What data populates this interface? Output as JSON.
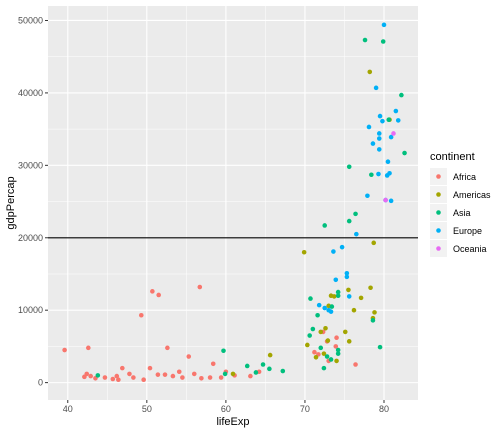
{
  "chart_data": {
    "type": "scatter",
    "xlabel": "lifeExp",
    "ylabel": "gdpPercap",
    "xlim": [
      37.5,
      84.3
    ],
    "ylim": [
      -2400,
      52000
    ],
    "x_ticks": [
      40,
      50,
      60,
      70,
      80
    ],
    "y_ticks": [
      0,
      10000,
      20000,
      30000,
      40000,
      50000
    ],
    "hline": 20000,
    "legend": {
      "title": "continent",
      "position": "right",
      "entries": [
        "Africa",
        "Americas",
        "Asia",
        "Europe",
        "Oceania"
      ]
    },
    "colors": {
      "Africa": "#F8766D",
      "Americas": "#A3A500",
      "Asia": "#00BF7D",
      "Europe": "#00B0F6",
      "Oceania": "#E76BF3"
    },
    "panel_background": "#EBEBEB",
    "grid": true,
    "series": [
      {
        "name": "Africa",
        "points": [
          [
            39.6,
            4500
          ],
          [
            42.1,
            800
          ],
          [
            42.4,
            1200
          ],
          [
            42.6,
            4800
          ],
          [
            42.9,
            900
          ],
          [
            43.5,
            600
          ],
          [
            44.7,
            700
          ],
          [
            45.7,
            500
          ],
          [
            46.2,
            900
          ],
          [
            46.4,
            400
          ],
          [
            46.9,
            2000
          ],
          [
            47.8,
            1200
          ],
          [
            48.3,
            700
          ],
          [
            49.3,
            9300
          ],
          [
            49.6,
            400
          ],
          [
            50.4,
            2000
          ],
          [
            50.7,
            12600
          ],
          [
            51.4,
            1100
          ],
          [
            51.5,
            12100
          ],
          [
            52.3,
            1100
          ],
          [
            52.6,
            4800
          ],
          [
            53.3,
            900
          ],
          [
            54.1,
            1500
          ],
          [
            54.5,
            700
          ],
          [
            55.3,
            3600
          ],
          [
            56.0,
            1200
          ],
          [
            56.7,
            13200
          ],
          [
            56.9,
            600
          ],
          [
            58.0,
            700
          ],
          [
            58.4,
            2600
          ],
          [
            59.4,
            700
          ],
          [
            60.0,
            1500
          ],
          [
            61.1,
            1000
          ],
          [
            63.1,
            900
          ],
          [
            64.2,
            1500
          ],
          [
            71.2,
            4200
          ],
          [
            71.7,
            3900
          ],
          [
            72.3,
            7000
          ],
          [
            72.8,
            5700
          ],
          [
            73.0,
            3000
          ],
          [
            73.9,
            5000
          ],
          [
            74.0,
            6200
          ],
          [
            76.4,
            2500
          ]
        ]
      },
      {
        "name": "Americas",
        "points": [
          [
            60.9,
            1200
          ],
          [
            65.6,
            3800
          ],
          [
            69.9,
            18000
          ],
          [
            70.3,
            5200
          ],
          [
            71.4,
            3500
          ],
          [
            72.0,
            7000
          ],
          [
            72.4,
            4000
          ],
          [
            72.6,
            7500
          ],
          [
            72.9,
            5800
          ],
          [
            73.0,
            10600
          ],
          [
            73.3,
            12000
          ],
          [
            73.7,
            11900
          ],
          [
            74.0,
            3000
          ],
          [
            75.1,
            7000
          ],
          [
            75.5,
            12800
          ],
          [
            75.6,
            5700
          ],
          [
            76.2,
            10000
          ],
          [
            77.1,
            11700
          ],
          [
            78.2,
            42900
          ],
          [
            78.6,
            8900
          ],
          [
            78.3,
            13100
          ],
          [
            78.7,
            19300
          ],
          [
            78.8,
            9700
          ],
          [
            80.7,
            36300
          ]
        ]
      },
      {
        "name": "Asia",
        "points": [
          [
            43.8,
            1000
          ],
          [
            59.7,
            4400
          ],
          [
            59.9,
            1200
          ],
          [
            62.7,
            2300
          ],
          [
            63.8,
            1400
          ],
          [
            64.7,
            2500
          ],
          [
            65.5,
            1900
          ],
          [
            67.2,
            1600
          ],
          [
            70.6,
            6500
          ],
          [
            70.7,
            11600
          ],
          [
            71.0,
            7400
          ],
          [
            71.6,
            9300
          ],
          [
            72.0,
            4800
          ],
          [
            72.4,
            2000
          ],
          [
            72.5,
            21700
          ],
          [
            72.8,
            3600
          ],
          [
            73.3,
            3200
          ],
          [
            73.4,
            10500
          ],
          [
            74.2,
            12000
          ],
          [
            74.2,
            12500
          ],
          [
            74.2,
            4500
          ],
          [
            74.2,
            4000
          ],
          [
            75.6,
            29800
          ],
          [
            75.6,
            22300
          ],
          [
            76.4,
            23300
          ],
          [
            77.6,
            47300
          ],
          [
            78.4,
            28700
          ],
          [
            78.6,
            8600
          ],
          [
            79.9,
            47100
          ],
          [
            80.6,
            36300
          ],
          [
            82.2,
            39700
          ],
          [
            82.6,
            31700
          ],
          [
            79.5,
            4900
          ]
        ]
      },
      {
        "name": "Europe",
        "points": [
          [
            71.8,
            10700
          ],
          [
            72.5,
            10300
          ],
          [
            73.0,
            10000
          ],
          [
            73.3,
            9800
          ],
          [
            73.9,
            14200
          ],
          [
            73.6,
            18100
          ],
          [
            74.7,
            18700
          ],
          [
            75.3,
            15100
          ],
          [
            75.3,
            14600
          ],
          [
            75.6,
            11900
          ],
          [
            76.5,
            20500
          ],
          [
            77.9,
            25800
          ],
          [
            78.1,
            35300
          ],
          [
            78.6,
            33000
          ],
          [
            79.0,
            40700
          ],
          [
            79.3,
            28800
          ],
          [
            79.4,
            32200
          ],
          [
            79.4,
            33700
          ],
          [
            79.4,
            34400
          ],
          [
            79.5,
            36800
          ],
          [
            79.8,
            36100
          ],
          [
            80.0,
            49400
          ],
          [
            80.2,
            25200
          ],
          [
            80.4,
            28600
          ],
          [
            80.5,
            30500
          ],
          [
            80.7,
            28900
          ],
          [
            80.9,
            33900
          ],
          [
            81.5,
            37500
          ],
          [
            81.8,
            36200
          ],
          [
            80.9,
            25100
          ]
        ]
      },
      {
        "name": "Oceania",
        "points": [
          [
            80.2,
            25200
          ],
          [
            81.2,
            34400
          ]
        ]
      }
    ]
  }
}
